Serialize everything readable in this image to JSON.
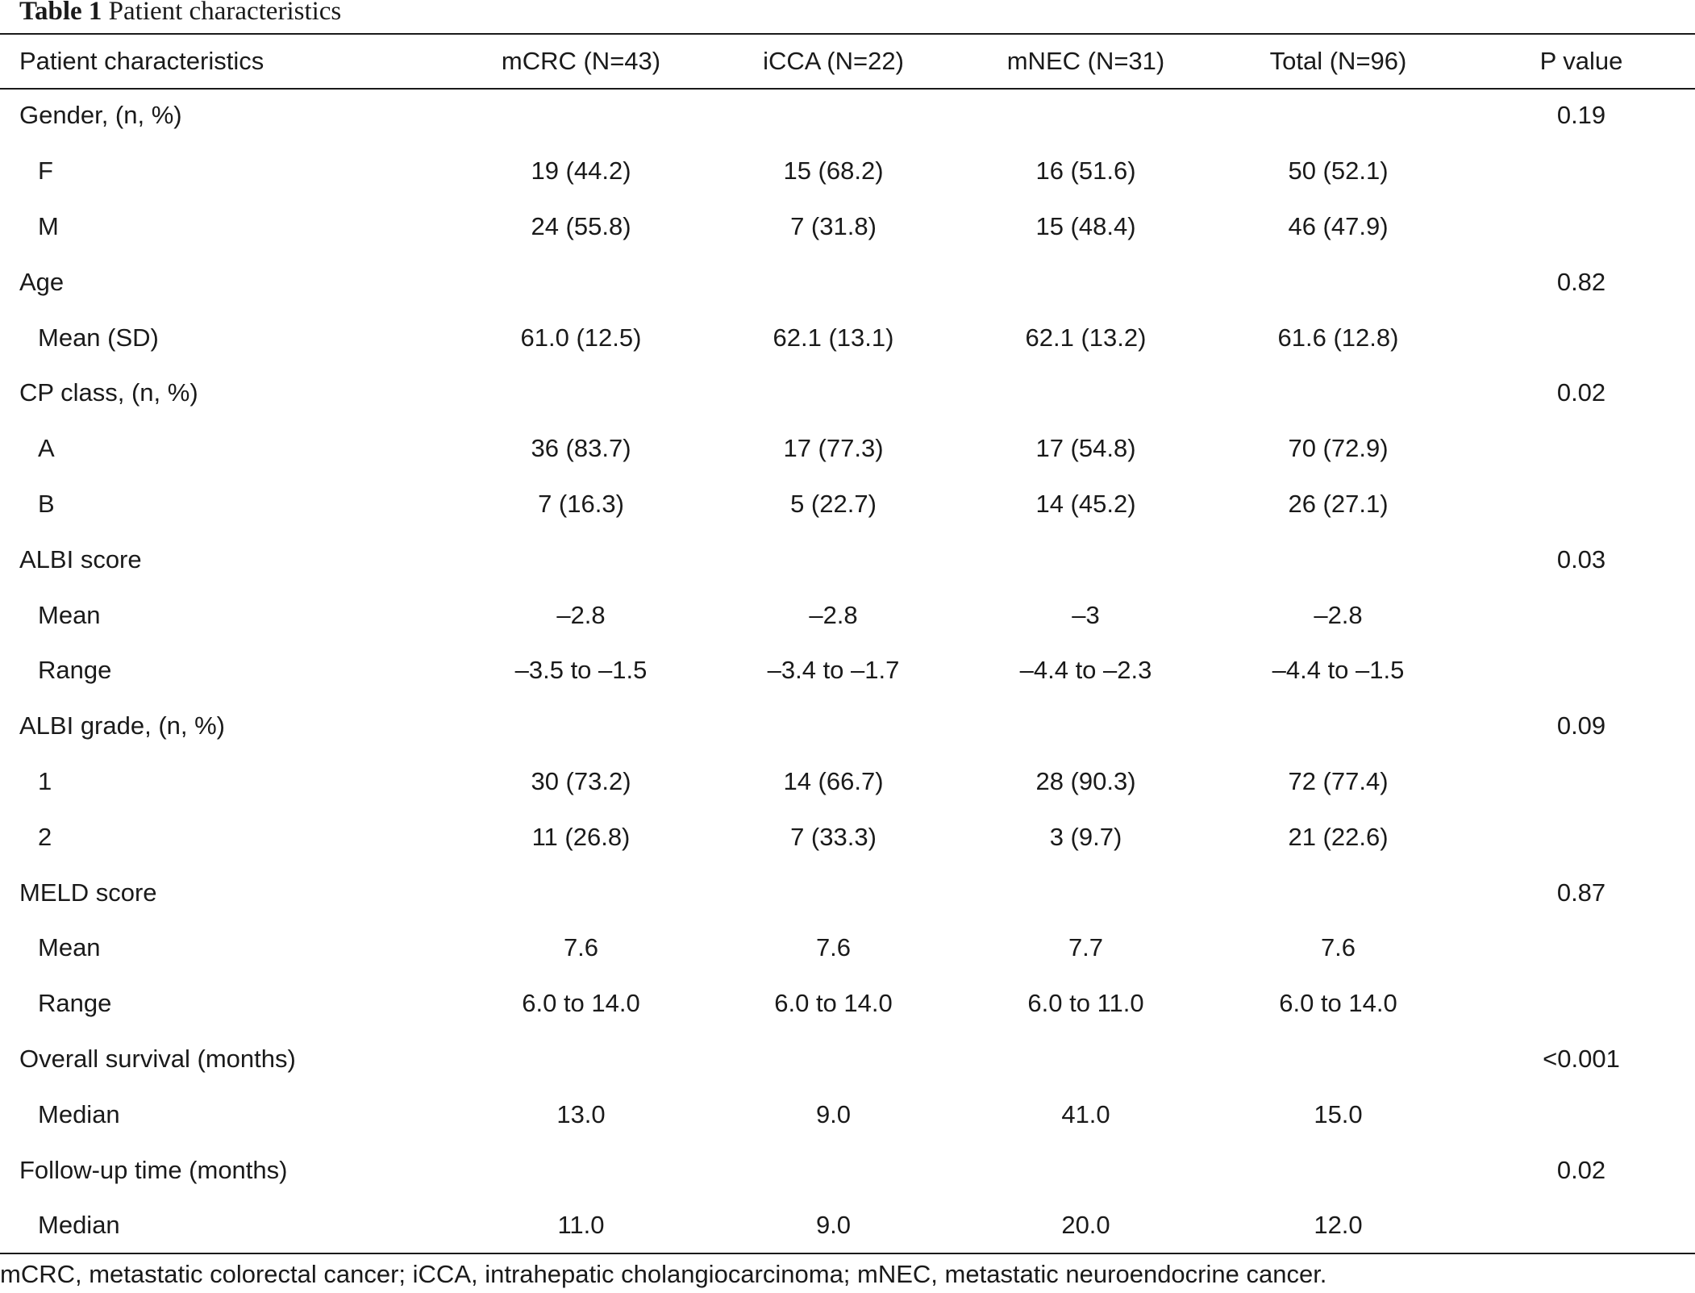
{
  "caption": {
    "label": "Table 1",
    "title": "Patient characteristics"
  },
  "table": {
    "headers": [
      "Patient characteristics",
      "mCRC (N=43)",
      "iCCA (N=22)",
      "mNEC (N=31)",
      "Total (N=96)",
      "P value"
    ],
    "rows": [
      {
        "cells": [
          "Gender, (n, %)",
          "",
          "",
          "",
          "",
          "0.19"
        ],
        "indent": false
      },
      {
        "cells": [
          "F",
          "19 (44.2)",
          "15 (68.2)",
          "16 (51.6)",
          "50 (52.1)",
          ""
        ],
        "indent": true
      },
      {
        "cells": [
          "M",
          "24 (55.8)",
          "7 (31.8)",
          "15 (48.4)",
          "46 (47.9)",
          ""
        ],
        "indent": true
      },
      {
        "cells": [
          "Age",
          "",
          "",
          "",
          "",
          "0.82"
        ],
        "indent": false
      },
      {
        "cells": [
          "Mean (SD)",
          "61.0 (12.5)",
          "62.1 (13.1)",
          "62.1 (13.2)",
          "61.6 (12.8)",
          ""
        ],
        "indent": true
      },
      {
        "cells": [
          "CP class, (n, %)",
          "",
          "",
          "",
          "",
          "0.02"
        ],
        "indent": false
      },
      {
        "cells": [
          "A",
          "36 (83.7)",
          "17 (77.3)",
          "17 (54.8)",
          "70 (72.9)",
          ""
        ],
        "indent": true
      },
      {
        "cells": [
          "B",
          "7 (16.3)",
          "5 (22.7)",
          "14 (45.2)",
          "26 (27.1)",
          ""
        ],
        "indent": true
      },
      {
        "cells": [
          "ALBI score",
          "",
          "",
          "",
          "",
          "0.03"
        ],
        "indent": false
      },
      {
        "cells": [
          "Mean",
          "–2.8",
          "–2.8",
          "–3",
          "–2.8",
          ""
        ],
        "indent": true
      },
      {
        "cells": [
          "Range",
          "–3.5 to –1.5",
          "–3.4 to –1.7",
          "–4.4 to –2.3",
          "–4.4 to –1.5",
          ""
        ],
        "indent": true
      },
      {
        "cells": [
          "ALBI grade, (n, %)",
          "",
          "",
          "",
          "",
          "0.09"
        ],
        "indent": false
      },
      {
        "cells": [
          "1",
          "30 (73.2)",
          "14 (66.7)",
          "28 (90.3)",
          "72 (77.4)",
          ""
        ],
        "indent": true
      },
      {
        "cells": [
          "2",
          "11 (26.8)",
          "7 (33.3)",
          "3 (9.7)",
          "21 (22.6)",
          ""
        ],
        "indent": true
      },
      {
        "cells": [
          "MELD score",
          "",
          "",
          "",
          "",
          "0.87"
        ],
        "indent": false
      },
      {
        "cells": [
          "Mean",
          "7.6",
          "7.6",
          "7.7",
          "7.6",
          ""
        ],
        "indent": true
      },
      {
        "cells": [
          "Range",
          "6.0 to 14.0",
          "6.0 to 14.0",
          "6.0 to 11.0",
          "6.0 to 14.0",
          ""
        ],
        "indent": true
      },
      {
        "cells": [
          "Overall survival (months)",
          "",
          "",
          "",
          "",
          "<0.001"
        ],
        "indent": false
      },
      {
        "cells": [
          "Median",
          "13.0",
          "9.0",
          "41.0",
          "15.0",
          ""
        ],
        "indent": true
      },
      {
        "cells": [
          "Follow-up time (months)",
          "",
          "",
          "",
          "",
          "0.02"
        ],
        "indent": false
      },
      {
        "cells": [
          "Median",
          "11.0",
          "9.0",
          "20.0",
          "12.0",
          ""
        ],
        "indent": true
      }
    ]
  },
  "footnote": "mCRC, metastatic colorectal cancer; iCCA, intrahepatic cholangiocarcinoma; mNEC, metastatic neuroendocrine cancer."
}
